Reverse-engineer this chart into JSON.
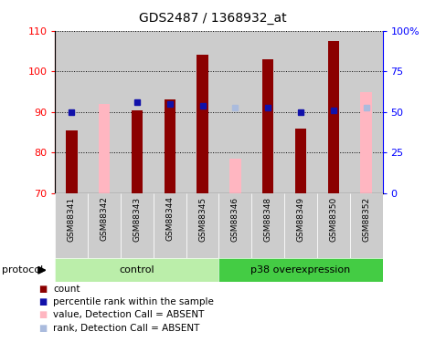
{
  "title": "GDS2487 / 1368932_at",
  "samples": [
    "GSM88341",
    "GSM88342",
    "GSM88343",
    "GSM88344",
    "GSM88345",
    "GSM88346",
    "GSM88348",
    "GSM88349",
    "GSM88350",
    "GSM88352"
  ],
  "red_values": [
    85.5,
    null,
    90.5,
    93.0,
    104.0,
    null,
    103.0,
    86.0,
    107.5,
    null
  ],
  "pink_values": [
    null,
    92.0,
    null,
    null,
    null,
    78.5,
    null,
    null,
    null,
    95.0
  ],
  "blue_values": [
    90.0,
    null,
    92.5,
    92.0,
    91.5,
    null,
    91.0,
    90.0,
    90.5,
    null
  ],
  "light_blue_values": [
    null,
    null,
    null,
    null,
    null,
    91.0,
    null,
    null,
    null,
    91.0
  ],
  "ylim_left": [
    70,
    110
  ],
  "ylim_right": [
    0,
    100
  ],
  "yticks_left": [
    70,
    80,
    90,
    100,
    110
  ],
  "ytick_labels_right": [
    "0",
    "25",
    "50",
    "75",
    "100%"
  ],
  "yticks_right": [
    0,
    25,
    50,
    75,
    100
  ],
  "red_color": "#8B0000",
  "pink_color": "#FFB6C1",
  "blue_color": "#1111AA",
  "light_blue_color": "#AABBDD",
  "bar_width": 0.35,
  "bg_color": "#CCCCCC",
  "control_bg": "#BBEEAA",
  "p38_bg": "#44CC44",
  "legend_items": [
    "count",
    "percentile rank within the sample",
    "value, Detection Call = ABSENT",
    "rank, Detection Call = ABSENT"
  ],
  "legend_colors": [
    "#8B0000",
    "#1111AA",
    "#FFB6C1",
    "#AABBDD"
  ]
}
